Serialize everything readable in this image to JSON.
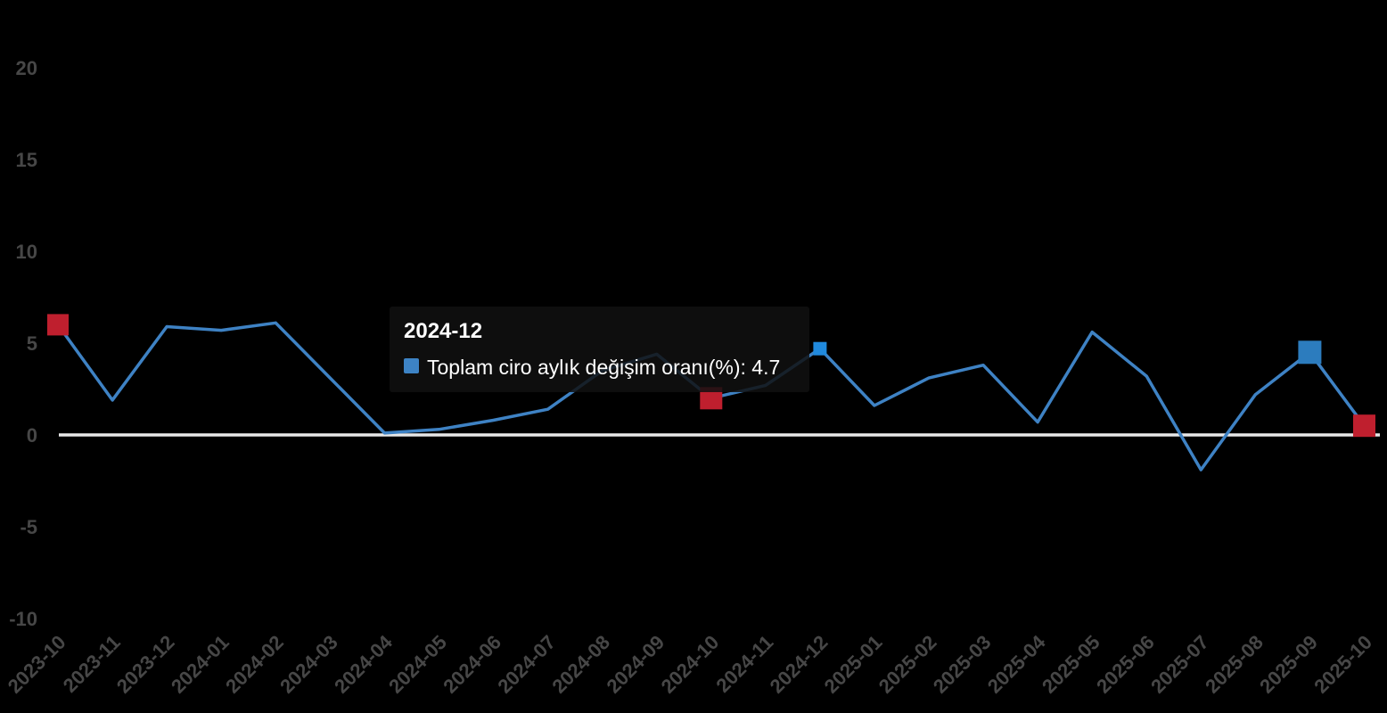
{
  "chart": {
    "tooltip": {
      "title": "2024-12",
      "series_label": "Toplam ciro aylık değişim oranı(%)",
      "separator": ": ",
      "value": "4.7",
      "swatch_color": "#3d83c5"
    },
    "colors": {
      "background": "#000000",
      "line": "#3e82c4",
      "zero_line": "#e8e8e8",
      "axis_label": "#474747",
      "marker_red": "#bf1f2e",
      "marker_blue": "#2c7cbe",
      "marker_hover_blue": "#208ade",
      "tooltip_bg": "rgba(16,16,16,0.85)"
    }
  },
  "chart_data": {
    "type": "line",
    "title": "",
    "xlabel": "",
    "ylabel": "",
    "categories": [
      "2023-10",
      "2023-11",
      "2023-12",
      "2024-01",
      "2024-02",
      "2024-03",
      "2024-04",
      "2024-05",
      "2024-06",
      "2024-07",
      "2024-08",
      "2024-09",
      "2024-10",
      "2024-11",
      "2024-12",
      "2025-01",
      "2025-02",
      "2025-03",
      "2025-04",
      "2025-05",
      "2025-06",
      "2025-07",
      "2025-08",
      "2025-09",
      "2025-10"
    ],
    "series": [
      {
        "name": "Toplam ciro aylık değişim oranı(%)",
        "values": [
          6.0,
          1.9,
          5.9,
          5.7,
          6.1,
          3.1,
          0.1,
          0.3,
          0.8,
          1.4,
          3.5,
          4.4,
          2.0,
          2.7,
          4.7,
          1.6,
          3.1,
          3.8,
          0.7,
          5.6,
          3.2,
          -1.9,
          2.2,
          4.5,
          0.5
        ]
      }
    ],
    "y_ticks": [
      20,
      15,
      10,
      5,
      0,
      -5,
      -10
    ],
    "ylim": [
      -10,
      20
    ],
    "grid": false,
    "legend_position": "none",
    "highlight": {
      "category": "2024-12",
      "value": 4.7
    },
    "markers": [
      {
        "category": "2023-10",
        "type": "red",
        "size": 24
      },
      {
        "category": "2024-10",
        "type": "red",
        "size": 25
      },
      {
        "category": "2024-12",
        "type": "hover",
        "size": 15
      },
      {
        "category": "2025-09",
        "type": "blue",
        "size": 26
      },
      {
        "category": "2025-10",
        "type": "red",
        "size": 25
      }
    ]
  }
}
